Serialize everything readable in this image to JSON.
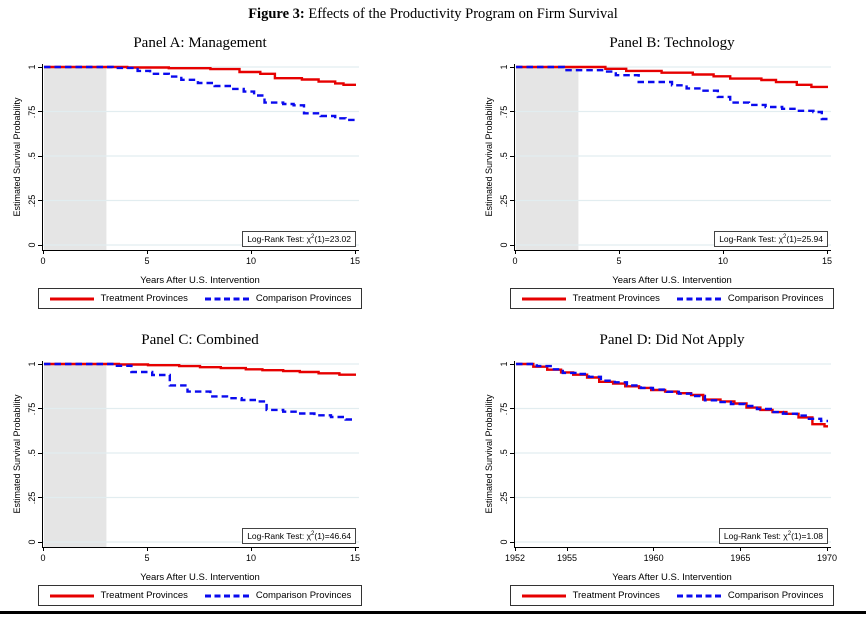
{
  "figure_title": {
    "bold": "Figure 3:",
    "text": " Effects of the Productivity Program on Firm Survival"
  },
  "legend": {
    "treatment": "Treatment Provinces",
    "comparison": "Comparison Provinces"
  },
  "colors": {
    "treatment": "#e60000",
    "comparison": "#0a0aee",
    "shade": "#e5e5e5",
    "grid": "#e2edf0",
    "axis": "#000000"
  },
  "chart_data": [
    {
      "type": "line",
      "subtype": "kaplan-meier-step",
      "panel_title": "Panel A: Management",
      "xlabel": "Years After U.S. Intervention",
      "ylabel": "Estimated Survival Probability",
      "xlim": [
        0,
        15
      ],
      "ylim": [
        0,
        1
      ],
      "xticks": [
        0,
        5,
        10,
        15
      ],
      "xtick_labels": [
        "0",
        "5",
        "10",
        "15"
      ],
      "yticks": [
        0,
        0.25,
        0.5,
        0.75,
        1
      ],
      "ytick_labels": [
        "0",
        ".25",
        ".5",
        ".75",
        "1"
      ],
      "grid": "horizontal",
      "legend_position": "bottom",
      "shaded_region_x": [
        0,
        3
      ],
      "logrank": {
        "prefix": "Log-Rank Test: χ",
        "sup": "2",
        "suffix": "(1)=23.02"
      },
      "series": [
        {
          "name": "Treatment Provinces",
          "style": "solid",
          "color_key": "treatment",
          "points": [
            [
              0,
              1
            ],
            [
              4,
              0.997
            ],
            [
              6,
              0.993
            ],
            [
              8,
              0.988
            ],
            [
              9.4,
              0.972
            ],
            [
              10.4,
              0.962
            ],
            [
              11.1,
              0.937
            ],
            [
              12.4,
              0.93
            ],
            [
              13.2,
              0.918
            ],
            [
              14,
              0.908
            ],
            [
              14.4,
              0.9
            ]
          ]
        },
        {
          "name": "Comparison Provinces",
          "style": "dashed",
          "color_key": "comparison",
          "points": [
            [
              0,
              1
            ],
            [
              3.3,
              0.995
            ],
            [
              4.5,
              0.978
            ],
            [
              5.1,
              0.962
            ],
            [
              6,
              0.946
            ],
            [
              6.6,
              0.928
            ],
            [
              7.4,
              0.91
            ],
            [
              8.2,
              0.893
            ],
            [
              9,
              0.877
            ],
            [
              9.6,
              0.862
            ],
            [
              10.1,
              0.84
            ],
            [
              10.6,
              0.8
            ],
            [
              11.5,
              0.792
            ],
            [
              12,
              0.785
            ],
            [
              12.5,
              0.74
            ],
            [
              13.3,
              0.725
            ],
            [
              14,
              0.712
            ],
            [
              14.5,
              0.703
            ]
          ]
        }
      ]
    },
    {
      "type": "line",
      "subtype": "kaplan-meier-step",
      "panel_title": "Panel B: Technology",
      "xlabel": "Years After U.S. Intervention",
      "ylabel": "Estimated Survival Probability",
      "xlim": [
        0,
        15
      ],
      "ylim": [
        0,
        1
      ],
      "xticks": [
        0,
        5,
        10,
        15
      ],
      "xtick_labels": [
        "0",
        "5",
        "10",
        "15"
      ],
      "yticks": [
        0,
        0.25,
        0.5,
        0.75,
        1
      ],
      "ytick_labels": [
        "0",
        ".25",
        ".5",
        ".75",
        "1"
      ],
      "grid": "horizontal",
      "legend_position": "bottom",
      "shaded_region_x": [
        0,
        3
      ],
      "logrank": {
        "prefix": "Log-Rank Test: χ",
        "sup": "2",
        "suffix": "(1)=25.94"
      },
      "series": [
        {
          "name": "Treatment Provinces",
          "style": "solid",
          "color_key": "treatment",
          "points": [
            [
              0,
              1
            ],
            [
              4.3,
              0.99
            ],
            [
              5.3,
              0.978
            ],
            [
              7,
              0.968
            ],
            [
              8.5,
              0.958
            ],
            [
              9.5,
              0.948
            ],
            [
              10.3,
              0.935
            ],
            [
              11.8,
              0.927
            ],
            [
              12.5,
              0.915
            ],
            [
              13.5,
              0.9
            ],
            [
              14.2,
              0.888
            ]
          ]
        },
        {
          "name": "Comparison Provinces",
          "style": "dashed",
          "color_key": "comparison",
          "points": [
            [
              0,
              1
            ],
            [
              2.3,
              0.982
            ],
            [
              4.2,
              0.974
            ],
            [
              4.8,
              0.954
            ],
            [
              5.9,
              0.916
            ],
            [
              7.5,
              0.897
            ],
            [
              8.2,
              0.88
            ],
            [
              8.9,
              0.867
            ],
            [
              9.7,
              0.832
            ],
            [
              10.3,
              0.8
            ],
            [
              11.2,
              0.787
            ],
            [
              12,
              0.775
            ],
            [
              12.8,
              0.765
            ],
            [
              13.6,
              0.754
            ],
            [
              14.3,
              0.747
            ],
            [
              14.7,
              0.708
            ]
          ]
        }
      ]
    },
    {
      "type": "line",
      "subtype": "kaplan-meier-step",
      "panel_title": "Panel C: Combined",
      "xlabel": "Years After U.S. Intervention",
      "ylabel": "Estimated Survival Probability",
      "xlim": [
        0,
        15
      ],
      "ylim": [
        0,
        1
      ],
      "xticks": [
        0,
        5,
        10,
        15
      ],
      "xtick_labels": [
        "0",
        "5",
        "10",
        "15"
      ],
      "yticks": [
        0,
        0.25,
        0.5,
        0.75,
        1
      ],
      "ytick_labels": [
        "0",
        ".25",
        ".5",
        ".75",
        "1"
      ],
      "grid": "horizontal",
      "legend_position": "bottom",
      "shaded_region_x": [
        0,
        3
      ],
      "logrank": {
        "prefix": "Log-Rank Test: χ",
        "sup": "2",
        "suffix": "(1)=46.64"
      },
      "series": [
        {
          "name": "Treatment Provinces",
          "style": "solid",
          "color_key": "treatment",
          "points": [
            [
              0,
              1
            ],
            [
              3.6,
              0.997
            ],
            [
              5,
              0.993
            ],
            [
              6.5,
              0.988
            ],
            [
              7.5,
              0.982
            ],
            [
              8.5,
              0.977
            ],
            [
              9.7,
              0.97
            ],
            [
              10.5,
              0.965
            ],
            [
              11.5,
              0.96
            ],
            [
              12.3,
              0.955
            ],
            [
              13.2,
              0.948
            ],
            [
              14.2,
              0.94
            ]
          ]
        },
        {
          "name": "Comparison Provinces",
          "style": "dashed",
          "color_key": "comparison",
          "points": [
            [
              0,
              1
            ],
            [
              3.4,
              0.99
            ],
            [
              4.2,
              0.955
            ],
            [
              5.2,
              0.938
            ],
            [
              6.05,
              0.88
            ],
            [
              6.9,
              0.845
            ],
            [
              8,
              0.818
            ],
            [
              8.8,
              0.808
            ],
            [
              9.5,
              0.798
            ],
            [
              10.2,
              0.79
            ],
            [
              10.7,
              0.742
            ],
            [
              11.5,
              0.732
            ],
            [
              12.2,
              0.722
            ],
            [
              13,
              0.712
            ],
            [
              13.8,
              0.702
            ],
            [
              14.5,
              0.688
            ]
          ]
        }
      ]
    },
    {
      "type": "line",
      "subtype": "kaplan-meier-step",
      "panel_title": "Panel D: Did Not Apply",
      "xlabel": "Years After U.S. Intervention",
      "ylabel": "Estimated Survival Probability",
      "xlim": [
        1952,
        1970
      ],
      "ylim": [
        0,
        1
      ],
      "xticks": [
        1952,
        1955,
        1960,
        1965,
        1970
      ],
      "xtick_labels": [
        "1952",
        "1955",
        "1960",
        "1965",
        "1970"
      ],
      "yticks": [
        0,
        0.25,
        0.5,
        0.75,
        1
      ],
      "ytick_labels": [
        "0",
        ".25",
        ".5",
        ".75",
        "1"
      ],
      "grid": "horizontal",
      "legend_position": "bottom",
      "shaded_region_x": null,
      "logrank": {
        "prefix": "Log-Rank Test: χ",
        "sup": "2",
        "suffix": "(1)=1.08"
      },
      "series": [
        {
          "name": "Treatment Provinces",
          "style": "solid",
          "color_key": "treatment",
          "points": [
            [
              1952,
              1
            ],
            [
              1953,
              0.985
            ],
            [
              1953.8,
              0.968
            ],
            [
              1954.6,
              0.953
            ],
            [
              1955.3,
              0.94
            ],
            [
              1956.1,
              0.924
            ],
            [
              1956.8,
              0.9
            ],
            [
              1957.6,
              0.89
            ],
            [
              1958.3,
              0.875
            ],
            [
              1959.1,
              0.866
            ],
            [
              1959.8,
              0.854
            ],
            [
              1960.6,
              0.845
            ],
            [
              1961.3,
              0.836
            ],
            [
              1962.1,
              0.826
            ],
            [
              1962.8,
              0.8
            ],
            [
              1963.8,
              0.79
            ],
            [
              1964.6,
              0.778
            ],
            [
              1965.3,
              0.755
            ],
            [
              1966.1,
              0.742
            ],
            [
              1966.8,
              0.73
            ],
            [
              1967.6,
              0.72
            ],
            [
              1968.3,
              0.7
            ],
            [
              1969.1,
              0.662
            ],
            [
              1969.8,
              0.65
            ]
          ]
        },
        {
          "name": "Comparison Provinces",
          "style": "dashed",
          "color_key": "comparison",
          "points": [
            [
              1952,
              1
            ],
            [
              1953.2,
              0.988
            ],
            [
              1954,
              0.97
            ],
            [
              1954.7,
              0.95
            ],
            [
              1955.5,
              0.944
            ],
            [
              1956.2,
              0.928
            ],
            [
              1956.9,
              0.906
            ],
            [
              1957.7,
              0.897
            ],
            [
              1958.4,
              0.88
            ],
            [
              1959.2,
              0.866
            ],
            [
              1959.9,
              0.856
            ],
            [
              1960.7,
              0.844
            ],
            [
              1961.4,
              0.833
            ],
            [
              1962.2,
              0.82
            ],
            [
              1962.9,
              0.796
            ],
            [
              1963.7,
              0.786
            ],
            [
              1964.4,
              0.775
            ],
            [
              1965.2,
              0.764
            ],
            [
              1965.9,
              0.747
            ],
            [
              1966.7,
              0.73
            ],
            [
              1967.4,
              0.721
            ],
            [
              1968.2,
              0.71
            ],
            [
              1968.9,
              0.692
            ],
            [
              1969.6,
              0.68
            ]
          ]
        }
      ]
    }
  ]
}
